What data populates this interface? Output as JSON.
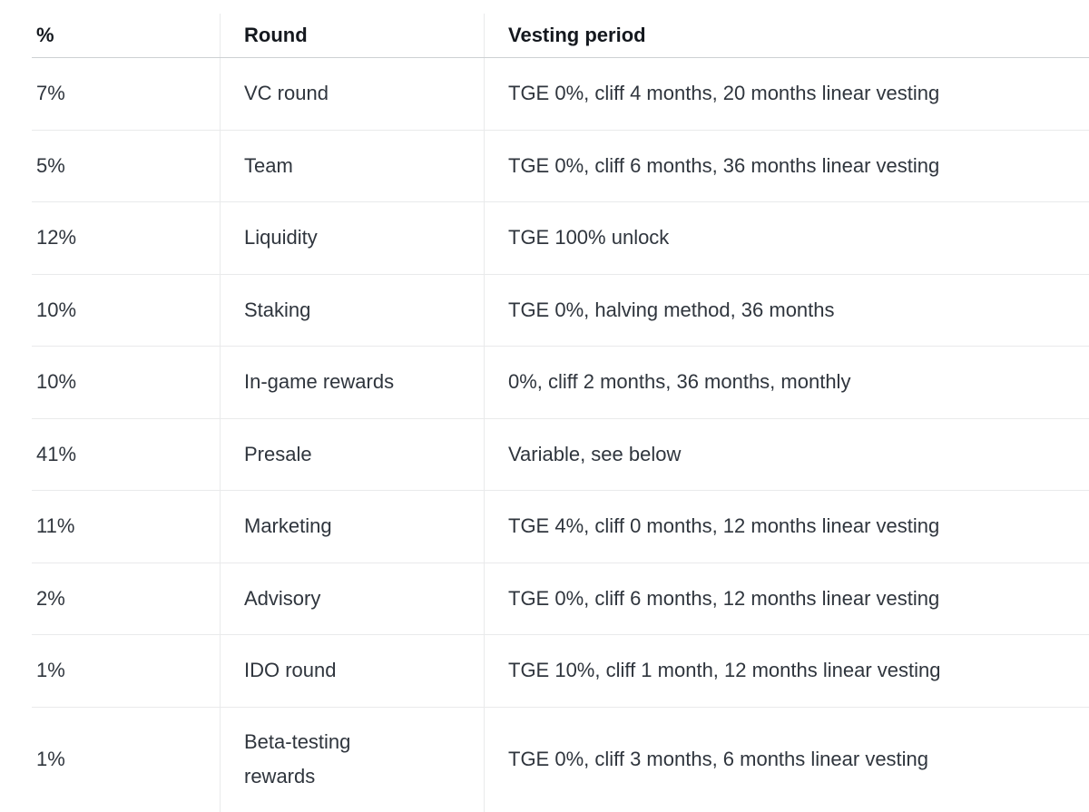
{
  "table": {
    "columns": {
      "pct": "%",
      "round": "Round",
      "vesting": "Vesting period"
    },
    "rows": [
      {
        "pct": "7%",
        "round": "VC round",
        "vesting": "TGE 0%, cliff 4 months, 20 months linear vesting"
      },
      {
        "pct": "5%",
        "round": "Team",
        "vesting": "TGE 0%, cliff 6 months, 36 months linear vesting"
      },
      {
        "pct": "12%",
        "round": "Liquidity",
        "vesting": "TGE 100% unlock"
      },
      {
        "pct": "10%",
        "round": "Staking",
        "vesting": "TGE 0%, halving method, 36 months"
      },
      {
        "pct": "10%",
        "round": "In-game rewards",
        "vesting": "0%, cliff 2 months, 36 months, monthly"
      },
      {
        "pct": "41%",
        "round": "Presale",
        "vesting": "Variable, see below"
      },
      {
        "pct": "11%",
        "round": "Marketing",
        "vesting": "TGE 4%, cliff 0 months, 12 months linear vesting"
      },
      {
        "pct": "2%",
        "round": "Advisory",
        "vesting": "TGE 0%, cliff 6 months, 12 months linear vesting"
      },
      {
        "pct": "1%",
        "round": "IDO round",
        "vesting": "TGE 10%, cliff 1 month, 12 months linear vesting"
      },
      {
        "pct": "1%",
        "round": "Beta-testing rewards",
        "vesting": "TGE 0%, cliff 3 months, 6 months linear vesting"
      }
    ],
    "colors": {
      "background": "#ffffff",
      "header_text": "#14181e",
      "body_text": "#2f353d",
      "row_border": "#e9eaeb",
      "header_border": "#cdd0d3"
    }
  }
}
